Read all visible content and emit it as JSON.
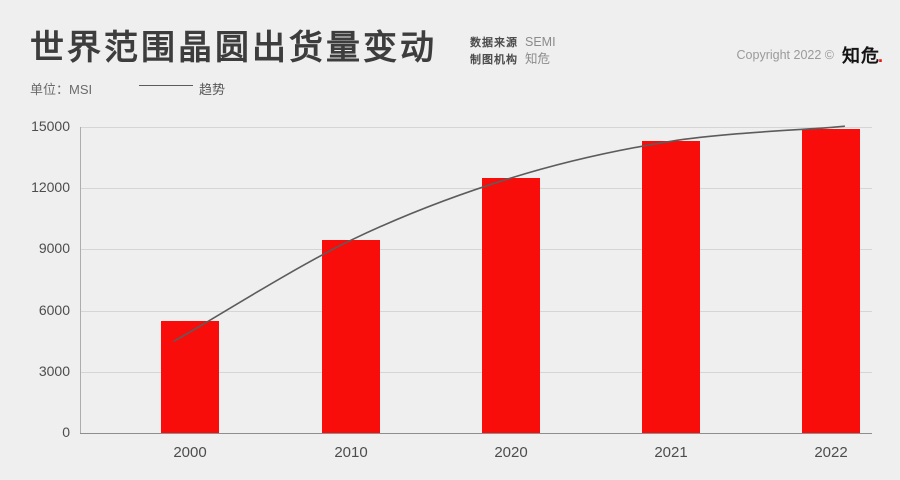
{
  "header": {
    "title": "世界范围晶圆出货量变动",
    "source": {
      "label": "数据来源",
      "value": "SEMI"
    },
    "agency": {
      "label": "制图机构",
      "value": "知危"
    },
    "copyright_text": "Copyright 2022 ©",
    "logo_text": "知危",
    "logo_dot": "."
  },
  "legend": {
    "unit_label": "单位：MSI",
    "trend_label": "趋势"
  },
  "colors": {
    "background": "#efefef",
    "bar_red": "#f90d0b",
    "trend_gray": "#5c5c5c",
    "logo_dot_red": "#e8150b"
  },
  "chart_data": {
    "type": "bar",
    "title": "世界范围晶圆出货量变动",
    "unit": "MSI",
    "categories": [
      "2000",
      "2010",
      "2020",
      "2021",
      "2022"
    ],
    "series": [
      {
        "name": "",
        "type": "bar",
        "values": [
          5500,
          9450,
          12500,
          14300,
          14900
        ]
      },
      {
        "name": "趋势",
        "type": "line",
        "values": [
          4950,
          9450,
          12500,
          14300,
          14980
        ]
      }
    ],
    "ylim": [
      0,
      15000
    ],
    "yticks": [
      0,
      3000,
      6000,
      9000,
      12000,
      15000
    ],
    "grid": "horizontal-only",
    "legend_position": "top-left",
    "bar_color": "#f90d0b",
    "trend_color": "#5c5c5c"
  }
}
